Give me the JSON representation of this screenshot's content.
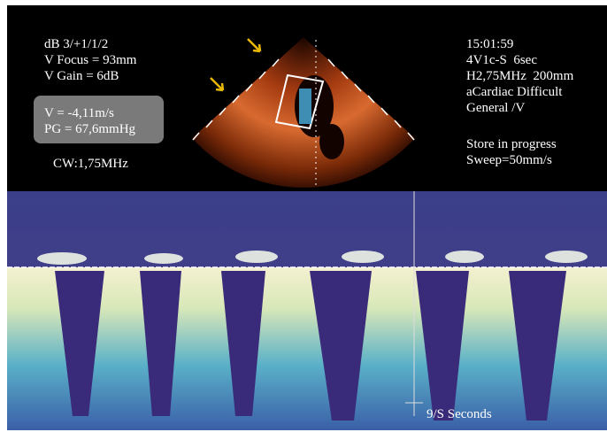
{
  "left_panel": {
    "lines": [
      "dB 3/+1/1/2",
      "V Focus = 93mm",
      "V Gain = 6dB"
    ],
    "measurement_box": [
      "V = -4,11m/s",
      "PG = 67,6mmHg"
    ],
    "probe_frequency": "CW:1,75MHz"
  },
  "right_panel": {
    "lines": [
      "15:01:59",
      "4V1c-S  6sec",
      "H2,75MHz  200mm",
      "aCardiac Difficult",
      "General /V"
    ],
    "status": [
      "Store in progress",
      "Sweep=50mm/s"
    ]
  },
  "doppler": {
    "time_scale_label": "9/S Seconds"
  }
}
